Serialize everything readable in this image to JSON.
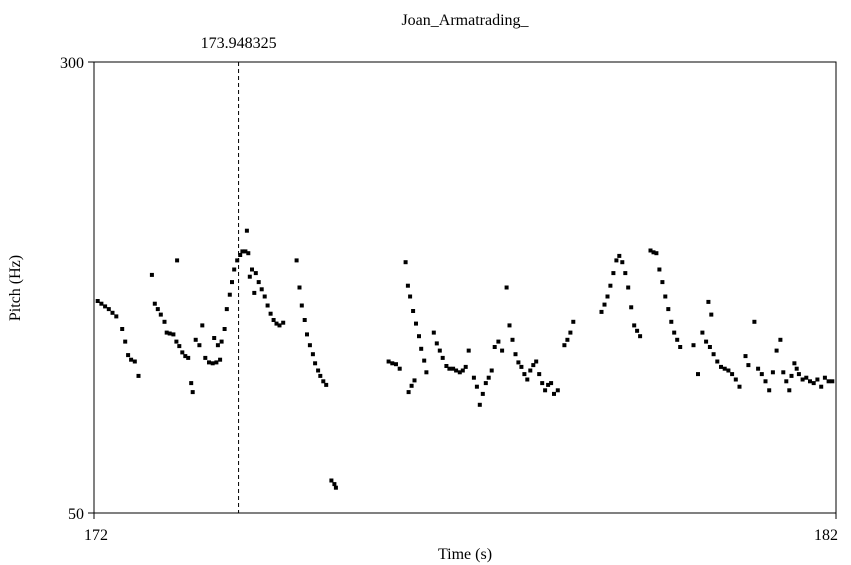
{
  "chart_data": {
    "type": "scatter",
    "title": "Joan_Armatrading_",
    "xlabel": "Time (s)",
    "ylabel": "Pitch (Hz)",
    "xlim": [
      172,
      182
    ],
    "ylim": [
      50,
      300
    ],
    "x_tick_labels": [
      "172",
      "182"
    ],
    "y_tick_labels": [
      "50",
      "300"
    ],
    "cursor": {
      "time": 173.948325,
      "label": "173.948325"
    },
    "grid": false,
    "marker_color": "#000000",
    "segments": [
      [
        [
          172.05,
          167.5
        ],
        [
          172.1,
          166.0
        ],
        [
          172.15,
          164.5
        ],
        [
          172.2,
          163.0
        ],
        [
          172.25,
          161.0
        ],
        [
          172.3,
          159.0
        ]
      ],
      [
        [
          172.38,
          152.0
        ],
        [
          172.42,
          145.0
        ],
        [
          172.46,
          137.5
        ],
        [
          172.5,
          135.0
        ],
        [
          172.55,
          134.0
        ],
        [
          172.6,
          126.0
        ]
      ],
      [
        [
          172.78,
          182.0
        ],
        [
          172.82,
          166.0
        ],
        [
          172.86,
          163.0
        ],
        [
          172.9,
          160.0
        ],
        [
          172.95,
          156.0
        ],
        [
          172.98,
          150.0
        ],
        [
          173.02,
          149.5
        ],
        [
          173.07,
          149.0
        ],
        [
          173.11,
          145.0
        ],
        [
          173.15,
          142.5
        ],
        [
          173.19,
          139.0
        ],
        [
          173.23,
          137.0
        ]
      ],
      [
        [
          173.12,
          190.0
        ],
        [
          173.27,
          136.0
        ],
        [
          173.31,
          122.0
        ],
        [
          173.33,
          117.0
        ],
        [
          173.37,
          146.0
        ]
      ],
      [
        [
          173.42,
          143.0
        ],
        [
          173.46,
          154.0
        ],
        [
          173.5,
          136.0
        ],
        [
          173.55,
          133.5
        ],
        [
          173.6,
          133.0
        ],
        [
          173.65,
          133.5
        ],
        [
          173.7,
          135.0
        ]
      ],
      [
        [
          173.62,
          147.0
        ],
        [
          173.67,
          143.0
        ],
        [
          173.72,
          145.0
        ],
        [
          173.76,
          152.0
        ],
        [
          173.79,
          163.0
        ],
        [
          173.83,
          171.0
        ],
        [
          173.86,
          178.0
        ],
        [
          173.89,
          185.0
        ],
        [
          173.93,
          190.0
        ],
        [
          173.97,
          193.0
        ],
        [
          174.0,
          195.0
        ],
        [
          174.04,
          195.0
        ],
        [
          174.08,
          194.0
        ]
      ],
      [
        [
          174.13,
          185.0
        ],
        [
          174.18,
          183.0
        ],
        [
          174.22,
          178.0
        ],
        [
          174.26,
          174.0
        ],
        [
          174.3,
          170.0
        ],
        [
          174.34,
          165.0
        ],
        [
          174.38,
          160.5
        ],
        [
          174.42,
          157.0
        ],
        [
          174.46,
          155.0
        ],
        [
          174.5,
          154.0
        ],
        [
          174.55,
          155.5
        ]
      ],
      [
        [
          174.06,
          206.5
        ],
        [
          174.1,
          181.0
        ],
        [
          174.16,
          172.0
        ]
      ],
      [
        [
          174.73,
          190.0
        ],
        [
          174.77,
          175.0
        ],
        [
          174.8,
          165.0
        ],
        [
          174.84,
          157.0
        ],
        [
          174.87,
          149.0
        ],
        [
          174.91,
          143.0
        ],
        [
          174.95,
          138.0
        ],
        [
          174.98,
          133.0
        ],
        [
          175.02,
          129.0
        ],
        [
          175.05,
          126.0
        ],
        [
          175.09,
          123.0
        ],
        [
          175.13,
          121.0
        ]
      ],
      [
        [
          175.2,
          68.0
        ],
        [
          175.24,
          66.0
        ],
        [
          175.26,
          64.0
        ]
      ],
      [
        [
          175.97,
          134.0
        ],
        [
          176.02,
          133.0
        ],
        [
          176.07,
          132.5
        ],
        [
          176.12,
          130.0
        ]
      ],
      [
        [
          176.2,
          189.0
        ],
        [
          176.23,
          176.0
        ],
        [
          176.26,
          170.0
        ],
        [
          176.3,
          162.0
        ],
        [
          176.34,
          155.0
        ],
        [
          176.38,
          148.0
        ],
        [
          176.41,
          141.0
        ],
        [
          176.45,
          134.5
        ],
        [
          176.48,
          128.0
        ]
      ],
      [
        [
          176.24,
          117.0
        ],
        [
          176.28,
          120.5
        ],
        [
          176.32,
          123.5
        ],
        [
          176.58,
          150.0
        ],
        [
          176.62,
          144.0
        ],
        [
          176.66,
          140.0
        ],
        [
          176.7,
          136.0
        ],
        [
          176.75,
          131.5
        ],
        [
          176.79,
          130.0
        ],
        [
          176.84,
          130.0
        ],
        [
          176.88,
          129.0
        ],
        [
          176.93,
          128.0
        ],
        [
          176.97,
          129.0
        ],
        [
          177.01,
          131.0
        ],
        [
          177.05,
          140.0
        ]
      ],
      [
        [
          177.12,
          125.0
        ],
        [
          177.16,
          120.0
        ],
        [
          177.2,
          110.0
        ],
        [
          177.24,
          116.0
        ],
        [
          177.28,
          122.0
        ],
        [
          177.32,
          125.0
        ],
        [
          177.36,
          129.0
        ],
        [
          177.4,
          142.0
        ],
        [
          177.45,
          145.0
        ],
        [
          177.5,
          140.0
        ]
      ],
      [
        [
          177.56,
          175.0
        ],
        [
          177.6,
          154.0
        ],
        [
          177.64,
          146.0
        ],
        [
          177.68,
          138.0
        ],
        [
          177.72,
          133.5
        ],
        [
          177.76,
          131.0
        ],
        [
          177.8,
          127.0
        ],
        [
          177.84,
          124.0
        ],
        [
          177.88,
          129.0
        ],
        [
          177.92,
          132.0
        ],
        [
          177.96,
          134.0
        ],
        [
          178.0,
          127.0
        ],
        [
          178.04,
          122.0
        ],
        [
          178.08,
          118.0
        ],
        [
          178.12,
          121.0
        ],
        [
          178.16,
          122.0
        ],
        [
          178.2,
          116.0
        ],
        [
          178.25,
          118.0
        ]
      ],
      [
        [
          178.34,
          143.0
        ],
        [
          178.38,
          146.0
        ],
        [
          178.42,
          150.0
        ],
        [
          178.46,
          156.0
        ]
      ],
      [
        [
          178.84,
          161.5
        ],
        [
          178.88,
          165.5
        ],
        [
          178.92,
          170.0
        ],
        [
          178.96,
          176.0
        ],
        [
          179.0,
          183.0
        ],
        [
          179.04,
          190.0
        ],
        [
          179.08,
          192.5
        ],
        [
          179.12,
          189.0
        ],
        [
          179.16,
          183.0
        ],
        [
          179.2,
          175.0
        ],
        [
          179.24,
          164.0
        ],
        [
          179.28,
          154.0
        ],
        [
          179.32,
          151.0
        ],
        [
          179.36,
          148.0
        ]
      ],
      [
        [
          179.5,
          195.5
        ],
        [
          179.54,
          194.5
        ],
        [
          179.58,
          194.0
        ],
        [
          179.62,
          185.0
        ],
        [
          179.66,
          178.0
        ],
        [
          179.7,
          170.0
        ],
        [
          179.74,
          163.0
        ],
        [
          179.78,
          156.0
        ],
        [
          179.82,
          150.0
        ],
        [
          179.86,
          146.0
        ],
        [
          179.9,
          142.0
        ]
      ],
      [
        [
          180.2,
          150.0
        ],
        [
          180.25,
          145.0
        ],
        [
          180.3,
          142.0
        ],
        [
          180.35,
          138.0
        ],
        [
          180.4,
          134.0
        ],
        [
          180.45,
          131.0
        ],
        [
          180.5,
          130.0
        ],
        [
          180.55,
          129.0
        ],
        [
          180.6,
          127.0
        ],
        [
          180.65,
          124.0
        ],
        [
          180.7,
          120.0
        ]
      ],
      [
        [
          180.08,
          143.0
        ],
        [
          180.14,
          127.0
        ],
        [
          180.28,
          167.0
        ],
        [
          180.32,
          160.0
        ],
        [
          180.78,
          137.0
        ],
        [
          180.82,
          132.0
        ],
        [
          180.9,
          156.0
        ],
        [
          180.95,
          130.0
        ],
        [
          181.0,
          127.0
        ],
        [
          181.05,
          123.0
        ],
        [
          181.1,
          118.0
        ],
        [
          181.15,
          128.0
        ],
        [
          181.2,
          140.0
        ],
        [
          181.25,
          146.0
        ],
        [
          181.29,
          128.0
        ],
        [
          181.33,
          123.0
        ],
        [
          181.37,
          118.0
        ],
        [
          181.4,
          126.0
        ],
        [
          181.44,
          133.0
        ],
        [
          181.47,
          130.0
        ],
        [
          181.5,
          127.0
        ],
        [
          181.55,
          124.0
        ],
        [
          181.6,
          125.0
        ],
        [
          181.65,
          123.0
        ],
        [
          181.7,
          122.0
        ],
        [
          181.75,
          124.0
        ],
        [
          181.8,
          120.0
        ],
        [
          181.85,
          125.0
        ],
        [
          181.9,
          123.0
        ],
        [
          181.95,
          123.0
        ]
      ]
    ]
  }
}
